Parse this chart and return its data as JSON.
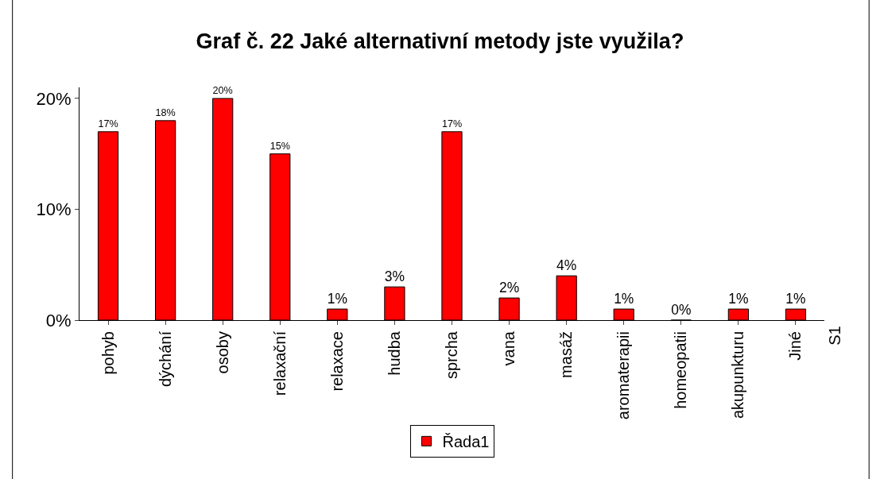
{
  "chart_data": {
    "type": "bar",
    "title": "Graf č. 22 Jaké alternativní metody jste využila?",
    "categories": [
      "pohyb",
      "dýchání",
      "osoby",
      "relaxační",
      "relaxace",
      "hudba",
      "sprcha",
      "vana",
      "masáž",
      "aromaterapii",
      "homeopatii",
      "akupunkturu",
      "Jiné"
    ],
    "series": [
      {
        "name": "Řada1",
        "color": "#ff0000",
        "values": [
          17,
          18,
          20,
          15,
          1,
          3,
          17,
          2,
          4,
          1,
          0,
          1,
          1
        ],
        "value_labels": [
          "17%",
          "18%",
          "20%",
          "15%",
          "1%",
          "3%",
          "17%",
          "2%",
          "4%",
          "1%",
          "0%",
          "1%",
          "1%"
        ]
      }
    ],
    "ylim": [
      0,
      21
    ],
    "yticks": [
      {
        "value": 0,
        "label": "0%"
      },
      {
        "value": 10,
        "label": "10%"
      },
      {
        "value": 20,
        "label": "20%"
      }
    ],
    "legend": "bottom",
    "annotations": [
      "S1"
    ]
  }
}
